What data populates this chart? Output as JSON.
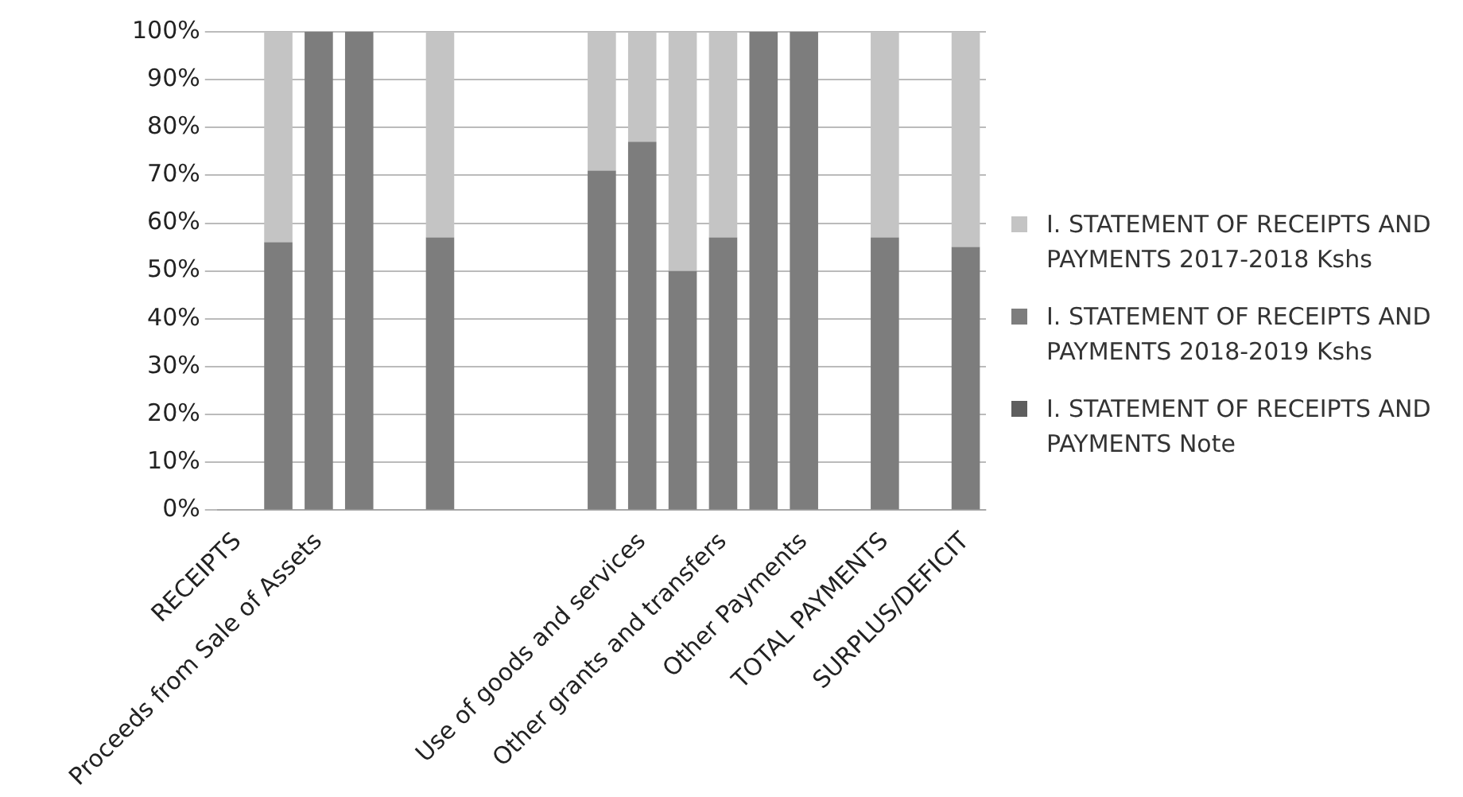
{
  "chart_data": {
    "type": "bar",
    "stacked": true,
    "categories": [
      "RECEIPTS",
      null,
      "Proceeds from Sale of Assets",
      null,
      null,
      null,
      null,
      null,
      null,
      null,
      "Use of goods and services",
      null,
      "Other grants and transfers",
      null,
      "Other Payments",
      null,
      "TOTAL PAYMENTS",
      null,
      "SURPLUS/DEFICIT"
    ],
    "series": [
      {
        "name": "I. STATEMENT OF RECEIPTS AND PAYMENTS Note",
        "color": "#5e5e5e",
        "values": [
          null,
          null,
          null,
          null,
          null,
          null,
          null,
          null,
          null,
          null,
          null,
          null,
          null,
          null,
          null,
          null,
          null,
          null,
          null
        ]
      },
      {
        "name": "I. STATEMENT OF RECEIPTS AND PAYMENTS 2018-2019 Kshs",
        "color": "#7d7d7d",
        "values": [
          null,
          56,
          100,
          100,
          null,
          57,
          null,
          null,
          null,
          71,
          77,
          50,
          57,
          100,
          100,
          null,
          57,
          null,
          55
        ]
      },
      {
        "name": "I. STATEMENT OF RECEIPTS AND PAYMENTS 2017-2018 Kshs",
        "color": "#c4c4c4",
        "values": [
          null,
          44,
          0,
          0,
          null,
          43,
          null,
          null,
          null,
          29,
          23,
          50,
          43,
          0,
          0,
          null,
          43,
          null,
          45
        ]
      }
    ],
    "ylim": [
      0,
      100
    ],
    "yticks": [
      {
        "value": 0,
        "label": "0%"
      },
      {
        "value": 10,
        "label": "10%"
      },
      {
        "value": 20,
        "label": "20%"
      },
      {
        "value": 30,
        "label": "30%"
      },
      {
        "value": 40,
        "label": "40%"
      },
      {
        "value": 50,
        "label": "50%"
      },
      {
        "value": 60,
        "label": "60%"
      },
      {
        "value": 70,
        "label": "70%"
      },
      {
        "value": 80,
        "label": "80%"
      },
      {
        "value": 90,
        "label": "90%"
      },
      {
        "value": 100,
        "label": "100%"
      }
    ],
    "grid": "y",
    "legend": "right"
  }
}
